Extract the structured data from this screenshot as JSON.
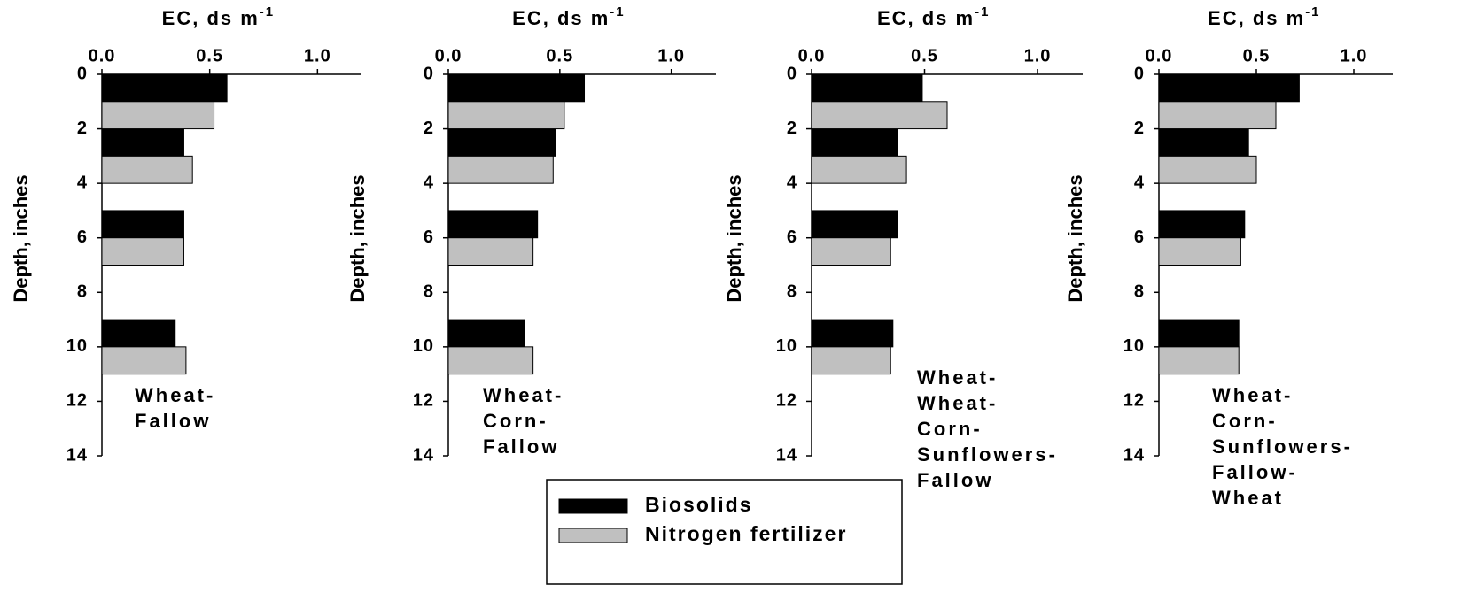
{
  "chart_data": [
    {
      "type": "hbar",
      "xlabel": "EC, ds m",
      "xlabel_superscript": "-1",
      "ylabel": "Depth, inches",
      "annotation": [
        "Wheat-",
        "Fallow"
      ],
      "xlim": [
        0,
        1.2
      ],
      "xticks": [
        {
          "value": 0,
          "label": "0.0"
        },
        0.5,
        {
          "value": 1,
          "label": "1.0"
        }
      ],
      "ylim": [
        0,
        14
      ],
      "yticks": [
        0,
        2,
        4,
        6,
        8,
        10,
        12,
        14
      ],
      "series": [
        {
          "depths": [
            0,
            2,
            5,
            9
          ],
          "values": [
            0.58,
            0.38,
            0.38,
            0.34
          ]
        },
        {
          "depths": [
            1,
            3,
            6,
            10
          ],
          "values": [
            0.52,
            0.42,
            0.38,
            0.39
          ]
        }
      ]
    },
    {
      "type": "hbar",
      "xlabel": "EC, ds m",
      "xlabel_superscript": "-1",
      "ylabel": "Depth, inches",
      "annotation": [
        "Wheat-",
        "Corn-",
        "Fallow"
      ],
      "xlim": [
        0,
        1.2
      ],
      "xticks": [
        {
          "value": 0,
          "label": "0.0"
        },
        0.5,
        {
          "value": 1,
          "label": "1.0"
        }
      ],
      "ylim": [
        0,
        14
      ],
      "yticks": [
        0,
        2,
        4,
        6,
        8,
        10,
        12,
        14
      ],
      "series": [
        {
          "depths": [
            0,
            2,
            5,
            9
          ],
          "values": [
            0.61,
            0.48,
            0.4,
            0.34
          ]
        },
        {
          "depths": [
            1,
            3,
            6,
            10
          ],
          "values": [
            0.52,
            0.47,
            0.38,
            0.38
          ]
        }
      ]
    },
    {
      "type": "hbar",
      "xlabel": "EC, ds m",
      "xlabel_superscript": "-1",
      "ylabel": "Depth, inches",
      "annotation": [
        "Wheat-",
        "Wheat-",
        "Corn-",
        "Sunflowers-",
        "Fallow"
      ],
      "xlim": [
        0,
        1.2
      ],
      "xticks": [
        {
          "value": 0,
          "label": "0.0"
        },
        0.5,
        {
          "value": 1,
          "label": "1.0"
        }
      ],
      "ylim": [
        0,
        14
      ],
      "yticks": [
        0,
        2,
        4,
        6,
        8,
        10,
        12,
        14
      ],
      "series": [
        {
          "depths": [
            0,
            2,
            5,
            9
          ],
          "values": [
            0.49,
            0.38,
            0.38,
            0.36
          ]
        },
        {
          "depths": [
            1,
            3,
            6,
            10
          ],
          "values": [
            0.6,
            0.42,
            0.35,
            0.35
          ]
        }
      ]
    },
    {
      "type": "hbar",
      "xlabel": "EC, ds m",
      "xlabel_superscript": "-1",
      "ylabel": "Depth, inches",
      "annotation": [
        "Wheat-",
        "Corn-",
        "Sunflowers-",
        "Fallow-",
        "Wheat"
      ],
      "xlim": [
        0,
        1.2
      ],
      "xticks": [
        {
          "value": 0,
          "label": "0.0"
        },
        0.5,
        {
          "value": 1,
          "label": "1.0"
        }
      ],
      "ylim": [
        0,
        14
      ],
      "yticks": [
        0,
        2,
        4,
        6,
        8,
        10,
        12,
        14
      ],
      "series": [
        {
          "depths": [
            0,
            2,
            5,
            9
          ],
          "values": [
            0.72,
            0.46,
            0.44,
            0.41
          ]
        },
        {
          "depths": [
            1,
            3,
            6,
            10
          ],
          "values": [
            0.6,
            0.5,
            0.42,
            0.41
          ]
        }
      ]
    }
  ],
  "legend": [
    {
      "name": "Biosolids",
      "color": "#000000"
    },
    {
      "name": "Nitrogen fertilizer",
      "color": "#c0c0c0"
    }
  ]
}
